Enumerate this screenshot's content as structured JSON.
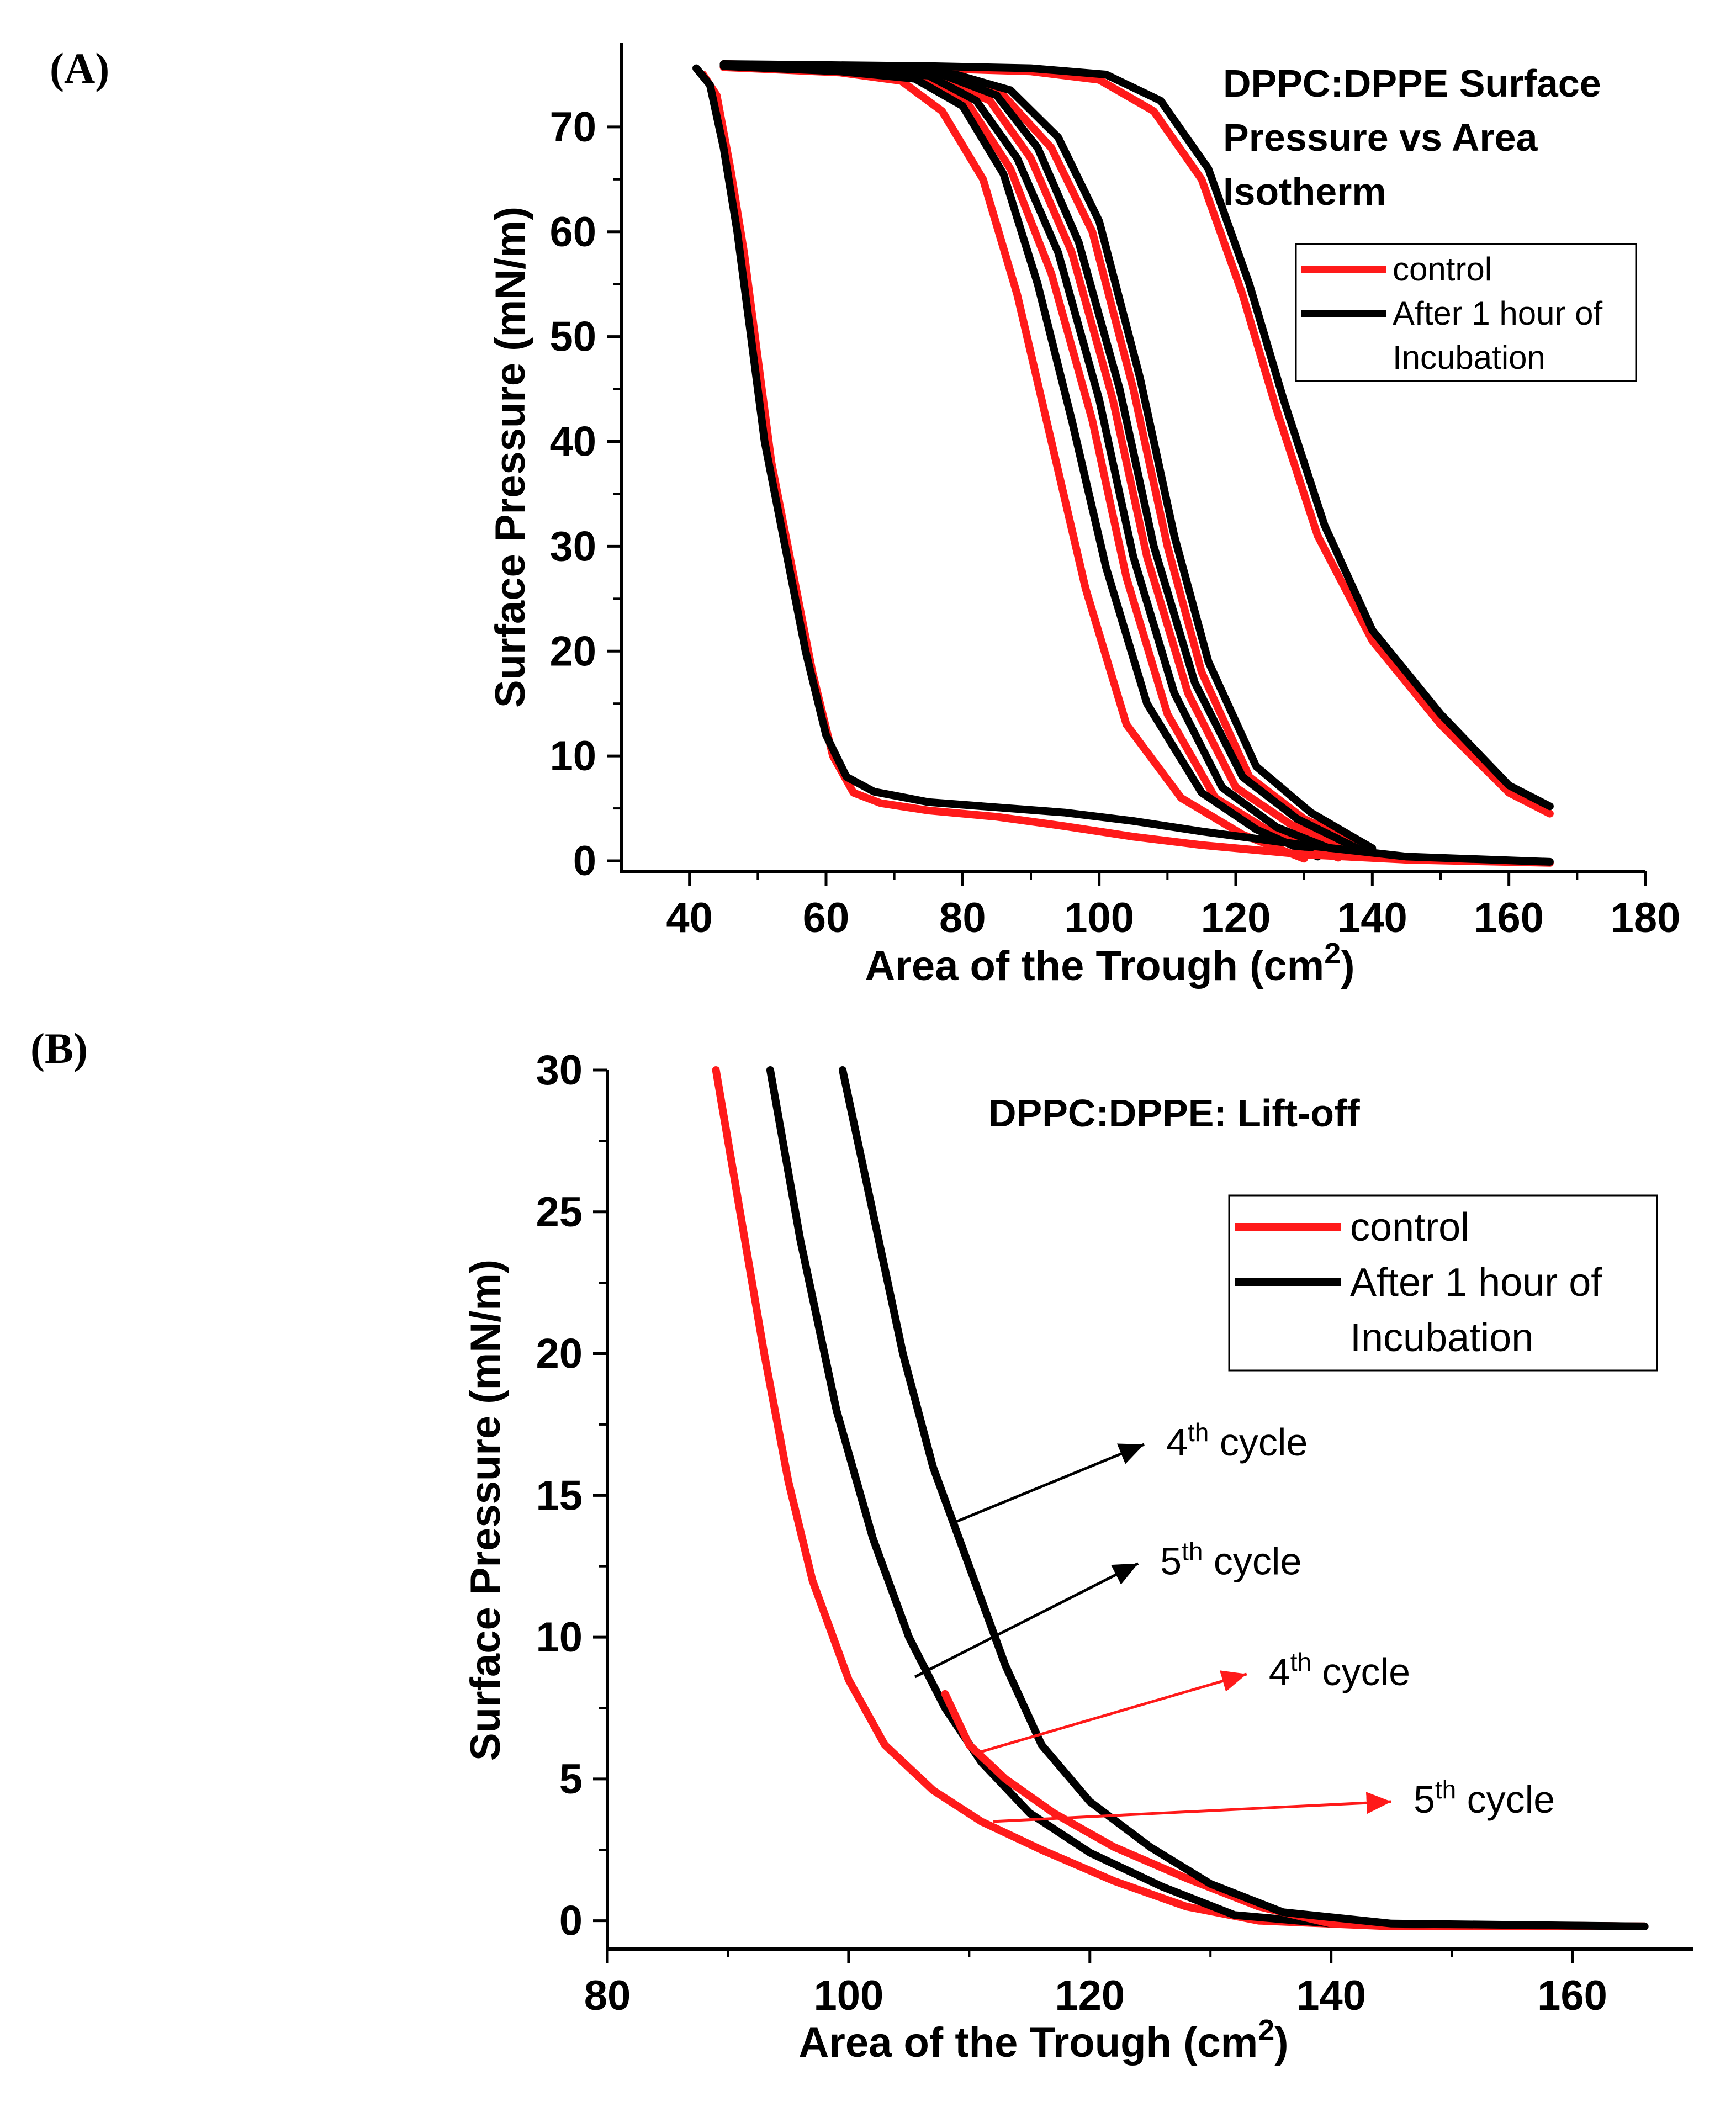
{
  "colors": {
    "control": "#ff1a1a",
    "incubation": "#000000"
  },
  "chart_data": [
    {
      "panel_label": "(A)",
      "type": "line",
      "title_lines": [
        "DPPC:DPPE Surface",
        "Pressure vs Area",
        "Isotherm"
      ],
      "xlabel": "Area of the Trough (cm",
      "xlabel_sup": "2",
      "xlabel_end": ")",
      "ylabel": "Surface Pressure (mN/m)",
      "xlim": [
        30,
        180
      ],
      "ylim": [
        -1,
        78
      ],
      "xticks": [
        40,
        60,
        80,
        100,
        120,
        140,
        160,
        180
      ],
      "yticks": [
        0,
        10,
        20,
        30,
        40,
        50,
        60,
        70
      ],
      "legend": {
        "position": "top-right",
        "entries": [
          {
            "label_lines": [
              "control"
            ],
            "color": "#ff1a1a"
          },
          {
            "label_lines": [
              "After 1 hour of",
              "Incubation"
            ],
            "color": "#000000"
          }
        ]
      },
      "series": [
        {
          "name": "control cycle 1",
          "group": "control",
          "points": [
            [
              166,
              4.5
            ],
            [
              160,
              6.5
            ],
            [
              150,
              13
            ],
            [
              140,
              21
            ],
            [
              132,
              31
            ],
            [
              126,
              43
            ],
            [
              121,
              54
            ],
            [
              115,
              65
            ],
            [
              108,
              71.5
            ],
            [
              100,
              74.5
            ],
            [
              90,
              75.3
            ],
            [
              75,
              75.6
            ],
            [
              60,
              75.8
            ],
            [
              45,
              76
            ]
          ]
        },
        {
          "name": "incubation cycle 1",
          "group": "incubation",
          "points": [
            [
              166,
              5.2
            ],
            [
              160,
              7.2
            ],
            [
              150,
              14
            ],
            [
              140,
              22
            ],
            [
              133,
              32
            ],
            [
              127,
              44
            ],
            [
              122,
              55
            ],
            [
              116,
              66
            ],
            [
              109,
              72.5
            ],
            [
              101,
              75
            ],
            [
              90,
              75.6
            ],
            [
              75,
              75.8
            ],
            [
              60,
              75.9
            ],
            [
              45,
              76
            ]
          ]
        },
        {
          "name": "control cycle 2",
          "group": "control",
          "points": [
            [
              140,
              1
            ],
            [
              130,
              4
            ],
            [
              122,
              8
            ],
            [
              115,
              18
            ],
            [
              110,
              30
            ],
            [
              105,
              45
            ],
            [
              99,
              60
            ],
            [
              93,
              68
            ],
            [
              86,
              73
            ],
            [
              78,
              74.8
            ],
            [
              65,
              75.5
            ],
            [
              45,
              75.8
            ]
          ]
        },
        {
          "name": "incubation cycle 2",
          "group": "incubation",
          "points": [
            [
              140,
              1.2
            ],
            [
              131,
              4.6
            ],
            [
              123,
              9
            ],
            [
              116,
              19
            ],
            [
              111,
              31
            ],
            [
              106,
              46
            ],
            [
              100,
              61
            ],
            [
              94,
              69
            ],
            [
              87,
              73.5
            ],
            [
              79,
              75
            ],
            [
              65,
              75.6
            ],
            [
              45,
              75.9
            ]
          ]
        },
        {
          "name": "control cycle 3",
          "group": "control",
          "points": [
            [
              138,
              0.5
            ],
            [
              128,
              3.5
            ],
            [
              120,
              7
            ],
            [
              113,
              16
            ],
            [
              107,
              29
            ],
            [
              102,
              44
            ],
            [
              96,
              58
            ],
            [
              90,
              67
            ],
            [
              84,
              72.5
            ],
            [
              76,
              74.8
            ],
            [
              65,
              75.5
            ],
            [
              45,
              75.8
            ]
          ]
        },
        {
          "name": "incubation cycle 3",
          "group": "incubation",
          "points": [
            [
              139,
              0.8
            ],
            [
              129,
              4
            ],
            [
              121,
              8
            ],
            [
              114,
              17
            ],
            [
              108,
              30
            ],
            [
              103,
              45
            ],
            [
              97,
              59
            ],
            [
              91,
              68
            ],
            [
              85,
              73
            ],
            [
              77,
              75
            ],
            [
              65,
              75.6
            ],
            [
              45,
              75.9
            ]
          ]
        },
        {
          "name": "control cycle 4",
          "group": "control",
          "points": [
            [
              135,
              0.3
            ],
            [
              125,
              2.8
            ],
            [
              117,
              6
            ],
            [
              110,
              14
            ],
            [
              104,
              27
            ],
            [
              99,
              42
            ],
            [
              93,
              56
            ],
            [
              87,
              66
            ],
            [
              81,
              72
            ],
            [
              74,
              74.7
            ],
            [
              62,
              75.4
            ],
            [
              45,
              75.8
            ]
          ]
        },
        {
          "name": "incubation cycle 4",
          "group": "incubation",
          "points": [
            [
              136,
              0.6
            ],
            [
              126,
              3.2
            ],
            [
              118,
              7
            ],
            [
              111,
              16
            ],
            [
              105,
              29
            ],
            [
              100,
              44
            ],
            [
              94,
              58
            ],
            [
              88,
              67
            ],
            [
              82,
              72.5
            ],
            [
              75,
              74.9
            ],
            [
              62,
              75.5
            ],
            [
              45,
              75.9
            ]
          ]
        },
        {
          "name": "control cycle 5",
          "group": "control",
          "points": [
            [
              130,
              0.2
            ],
            [
              121,
              2.5
            ],
            [
              112,
              6
            ],
            [
              104,
              13
            ],
            [
              98,
              26
            ],
            [
              93,
              40
            ],
            [
              88,
              54
            ],
            [
              83,
              65
            ],
            [
              77,
              71.5
            ],
            [
              71,
              74.4
            ],
            [
              62,
              75.2
            ],
            [
              45,
              75.7
            ]
          ]
        },
        {
          "name": "incubation cycle 5",
          "group": "incubation",
          "points": [
            [
              132,
              0.4
            ],
            [
              123,
              3
            ],
            [
              115,
              6.5
            ],
            [
              107,
              15
            ],
            [
              101,
              28
            ],
            [
              96,
              42
            ],
            [
              91,
              55
            ],
            [
              86,
              65.5
            ],
            [
              80,
              72
            ],
            [
              73,
              74.6
            ],
            [
              62,
              75.3
            ],
            [
              45,
              75.8
            ]
          ]
        },
        {
          "name": "control expansion",
          "group": "control",
          "points": [
            [
              42,
              75
            ],
            [
              44,
              73
            ],
            [
              46,
              66
            ],
            [
              48,
              58
            ],
            [
              50,
              48
            ],
            [
              52,
              38
            ],
            [
              55,
              28
            ],
            [
              58,
              18
            ],
            [
              61,
              10
            ],
            [
              64,
              6.5
            ],
            [
              68,
              5.5
            ],
            [
              75,
              4.8
            ],
            [
              85,
              4.2
            ],
            [
              95,
              3.3
            ],
            [
              105,
              2.3
            ],
            [
              115,
              1.5
            ],
            [
              130,
              0.6
            ],
            [
              145,
              0.1
            ],
            [
              166,
              -0.2
            ]
          ]
        },
        {
          "name": "incubation expansion",
          "group": "incubation",
          "points": [
            [
              41,
              75.6
            ],
            [
              43,
              74
            ],
            [
              45,
              68
            ],
            [
              47,
              60
            ],
            [
              49,
              50
            ],
            [
              51,
              40
            ],
            [
              54,
              30
            ],
            [
              57,
              20
            ],
            [
              60,
              12
            ],
            [
              63,
              8
            ],
            [
              67,
              6.6
            ],
            [
              75,
              5.6
            ],
            [
              85,
              5.1
            ],
            [
              95,
              4.6
            ],
            [
              105,
              3.8
            ],
            [
              115,
              2.8
            ],
            [
              130,
              1.5
            ],
            [
              145,
              0.4
            ],
            [
              166,
              -0.1
            ]
          ]
        }
      ]
    },
    {
      "panel_label": "(B)",
      "type": "line",
      "title": "DPPC:DPPE: Lift-off",
      "xlabel": "Area of the Trough (cm",
      "xlabel_sup": "2",
      "xlabel_end": ")",
      "ylabel": "Surface Pressure (mN/m)",
      "xlim": [
        80,
        170
      ],
      "ylim": [
        -1,
        30
      ],
      "xticks": [
        80,
        100,
        120,
        140,
        160
      ],
      "yticks": [
        0,
        5,
        10,
        15,
        20,
        25,
        30
      ],
      "legend": {
        "position": "top-right",
        "entries": [
          {
            "label_lines": [
              "control"
            ],
            "color": "#ff1a1a"
          },
          {
            "label_lines": [
              "After 1 hour of",
              "Incubation"
            ],
            "color": "#000000"
          }
        ]
      },
      "series": [
        {
          "name": "control 5th cycle",
          "group": "control",
          "points": [
            [
              89,
              30
            ],
            [
              91,
              25
            ],
            [
              93,
              20
            ],
            [
              95,
              15.5
            ],
            [
              97,
              12
            ],
            [
              100,
              8.5
            ],
            [
              103,
              6.2
            ],
            [
              107,
              4.6
            ],
            [
              111,
              3.5
            ],
            [
              116,
              2.5
            ],
            [
              122,
              1.4
            ],
            [
              128,
              0.5
            ],
            [
              134,
              0
            ],
            [
              145,
              -0.2
            ],
            [
              166,
              -0.2
            ]
          ]
        },
        {
          "name": "incubation 5th cycle",
          "group": "incubation",
          "points": [
            [
              93.5,
              30
            ],
            [
              96,
              24
            ],
            [
              99,
              18
            ],
            [
              102,
              13.5
            ],
            [
              105,
              10
            ],
            [
              108,
              7.5
            ],
            [
              111,
              5.6
            ],
            [
              115,
              3.8
            ],
            [
              120,
              2.4
            ],
            [
              126,
              1.2
            ],
            [
              132,
              0.2
            ],
            [
              140,
              -0.1
            ],
            [
              166,
              -0.2
            ]
          ]
        },
        {
          "name": "control 4th cycle",
          "group": "control",
          "points": [
            [
              108,
              8
            ],
            [
              110,
              6.2
            ],
            [
              113,
              5
            ],
            [
              117,
              3.8
            ],
            [
              122,
              2.6
            ],
            [
              128,
              1.5
            ],
            [
              134,
              0.5
            ],
            [
              140,
              -0.1
            ],
            [
              166,
              -0.2
            ]
          ]
        },
        {
          "name": "incubation 4th cycle",
          "group": "incubation",
          "points": [
            [
              99.5,
              30
            ],
            [
              102,
              25
            ],
            [
              104.5,
              20
            ],
            [
              107,
              16
            ],
            [
              110,
              12.5
            ],
            [
              113,
              9
            ],
            [
              116,
              6.2
            ],
            [
              120,
              4.2
            ],
            [
              125,
              2.6
            ],
            [
              130,
              1.3
            ],
            [
              136,
              0.3
            ],
            [
              145,
              -0.1
            ],
            [
              166,
              -0.2
            ]
          ]
        }
      ],
      "annotations": [
        {
          "label": "4",
          "sup": "th",
          "suffix": " cycle",
          "group": "incubation",
          "from": [
            108.5,
            14
          ],
          "to": [
            124.5,
            16.8
          ]
        },
        {
          "label": "5",
          "sup": "th",
          "suffix": " cycle",
          "group": "incubation",
          "from": [
            105.5,
            8.6
          ],
          "to": [
            124,
            12.6
          ]
        },
        {
          "label": "4",
          "sup": "th",
          "suffix": " cycle",
          "group": "control",
          "from": [
            110.5,
            5.9
          ],
          "to": [
            133,
            8.7
          ]
        },
        {
          "label": "5",
          "sup": "th",
          "suffix": " cycle",
          "group": "control",
          "from": [
            112,
            3.5
          ],
          "to": [
            145,
            4.2
          ]
        }
      ]
    }
  ]
}
